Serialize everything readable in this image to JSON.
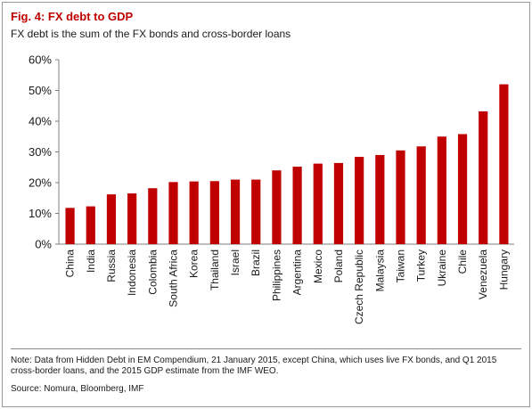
{
  "figure": {
    "title": "Fig. 4: FX debt to GDP",
    "subtitle": "FX debt is the sum of the FX bonds and cross-border loans",
    "note": "Note: Data from Hidden Debt in EM Compendium, 21 January 2015, except China, which uses live FX bonds, and Q1 2015 cross-border loans, and the 2015 GDP estimate from the IMF WEO.",
    "source": "Source: Nomura, Bloomberg, IMF"
  },
  "chart_data": {
    "type": "bar",
    "title": "Fig. 4: FX debt to GDP",
    "subtitle": "FX debt is the sum of the FX bonds and cross-border loans",
    "categories": [
      "China",
      "India",
      "Russia",
      "Indonesia",
      "Colombia",
      "South Africa",
      "Korea",
      "Thailand",
      "Israel",
      "Brazil",
      "Philippines",
      "Argentina",
      "Mexico",
      "Poland",
      "Czech Republic",
      "Malaysia",
      "Taiwan",
      "Turkey",
      "Ukraine",
      "Chile",
      "Venezuela",
      "Hungary"
    ],
    "values": [
      11.8,
      12.3,
      16.2,
      16.5,
      18.2,
      20.2,
      20.4,
      20.5,
      21.0,
      21.0,
      24.0,
      25.2,
      26.2,
      26.4,
      28.4,
      29.0,
      30.5,
      31.8,
      35.0,
      35.8,
      43.2,
      52.0
    ],
    "unit": "%",
    "ylim": [
      0,
      60
    ],
    "yticks": [
      0,
      10,
      20,
      30,
      40,
      50,
      60
    ],
    "ytick_labels": [
      "0%",
      "10%",
      "20%",
      "30%",
      "40%",
      "50%",
      "60%"
    ],
    "grid": false,
    "legend": "none",
    "bar_color": "#c00000"
  }
}
